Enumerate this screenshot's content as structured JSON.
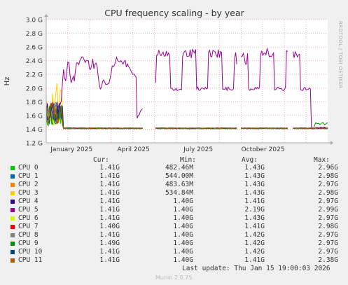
{
  "chart_data": {
    "type": "line",
    "title": "CPU frequency scaling - by year",
    "ylabel": "Hz",
    "y_ticks": [
      "1.2 G",
      "1.4 G",
      "1.6 G",
      "1.8 G",
      "2.0 G",
      "2.2 G",
      "2.4 G",
      "2.6 G",
      "2.8 G",
      "3.0 G"
    ],
    "ylim": [
      1.2,
      3.0
    ],
    "x_ticks": [
      "January 2025",
      "April 2025",
      "July 2025",
      "October 2025"
    ],
    "grid": true,
    "columns": [
      "Cur:",
      "Min:",
      "Avg:",
      "Max:"
    ],
    "series": [
      {
        "name": "CPU 0",
        "color": "#00cc00",
        "cur": "1.41G",
        "min": "482.46M",
        "avg": "1.43G",
        "max": "2.96G"
      },
      {
        "name": "CPU 1",
        "color": "#0066b3",
        "cur": "1.41G",
        "min": "544.00M",
        "avg": "1.43G",
        "max": "2.98G"
      },
      {
        "name": "CPU 2",
        "color": "#ff8000",
        "cur": "1.41G",
        "min": "483.63M",
        "avg": "1.43G",
        "max": "2.97G"
      },
      {
        "name": "CPU 3",
        "color": "#ffcc00",
        "cur": "1.41G",
        "min": "534.84M",
        "avg": "1.43G",
        "max": "2.98G"
      },
      {
        "name": "CPU 4",
        "color": "#330099",
        "cur": "1.41G",
        "min": "1.40G",
        "avg": "1.41G",
        "max": "2.97G"
      },
      {
        "name": "CPU 5",
        "color": "#990099",
        "cur": "1.41G",
        "min": "1.40G",
        "avg": "2.19G",
        "max": "2.99G"
      },
      {
        "name": "CPU 6",
        "color": "#ccff00",
        "cur": "1.41G",
        "min": "1.40G",
        "avg": "1.43G",
        "max": "2.97G"
      },
      {
        "name": "CPU 7",
        "color": "#ff0000",
        "cur": "1.40G",
        "min": "1.40G",
        "avg": "1.41G",
        "max": "2.98G"
      },
      {
        "name": "CPU 8",
        "color": "#808080",
        "cur": "1.41G",
        "min": "1.40G",
        "avg": "1.42G",
        "max": "2.97G"
      },
      {
        "name": "CPU 9",
        "color": "#008f00",
        "cur": "1.49G",
        "min": "1.40G",
        "avg": "1.42G",
        "max": "2.97G"
      },
      {
        "name": "CPU 10",
        "color": "#00487d",
        "cur": "1.41G",
        "min": "1.40G",
        "avg": "1.42G",
        "max": "2.97G"
      },
      {
        "name": "CPU 11",
        "color": "#b35a00",
        "cur": "1.41G",
        "min": "1.40G",
        "avg": "1.41G",
        "max": "2.38G"
      }
    ],
    "cpu5_profile": [
      [
        0.0,
        1.55
      ],
      [
        0.01,
        1.62
      ],
      [
        0.02,
        1.7
      ],
      [
        0.03,
        1.75
      ],
      [
        0.035,
        1.85
      ],
      [
        0.04,
        2.3
      ],
      [
        0.045,
        2.15
      ],
      [
        0.05,
        2.1
      ],
      [
        0.055,
        2.35
      ],
      [
        0.06,
        2.42
      ],
      [
        0.065,
        2.18
      ],
      [
        0.07,
        2.05
      ],
      [
        0.075,
        2.2
      ],
      [
        0.08,
        2.1
      ],
      [
        0.085,
        2.3
      ],
      [
        0.09,
        2.4
      ],
      [
        0.095,
        2.35
      ],
      [
        0.1,
        2.42
      ],
      [
        0.11,
        2.45
      ],
      [
        0.115,
        2.4
      ],
      [
        0.12,
        2.38
      ],
      [
        0.13,
        2.4
      ],
      [
        0.135,
        2.25
      ],
      [
        0.14,
        2.3
      ],
      [
        0.145,
        2.45
      ],
      [
        0.15,
        2.25
      ],
      [
        0.155,
        2.4
      ],
      [
        0.16,
        2.35
      ],
      [
        0.17,
        2.0
      ],
      [
        0.175,
        1.98
      ],
      [
        0.18,
        2.1
      ],
      [
        0.185,
        2.1
      ],
      [
        0.19,
        2.05
      ],
      [
        0.2,
        2.05
      ],
      [
        0.205,
        2.1
      ],
      [
        0.21,
        2.2
      ],
      [
        0.215,
        2.35
      ],
      [
        0.22,
        2.3
      ],
      [
        0.23,
        2.45
      ],
      [
        0.235,
        2.4
      ],
      [
        0.24,
        2.38
      ],
      [
        0.245,
        2.42
      ],
      [
        0.25,
        2.35
      ],
      [
        0.26,
        2.4
      ],
      [
        0.265,
        2.3
      ],
      [
        0.27,
        2.35
      ],
      [
        0.275,
        2.3
      ],
      [
        0.28,
        2.25
      ],
      [
        0.285,
        2.2
      ],
      [
        0.29,
        2.22
      ],
      [
        0.3,
        2.15
      ]
    ]
  },
  "side_label": "RRDTOOL / TOBI OETIKER",
  "footer": {
    "last_update": "Last update: Thu Jan 15 19:00:03 2026",
    "version": "Munin 2.0.75"
  }
}
